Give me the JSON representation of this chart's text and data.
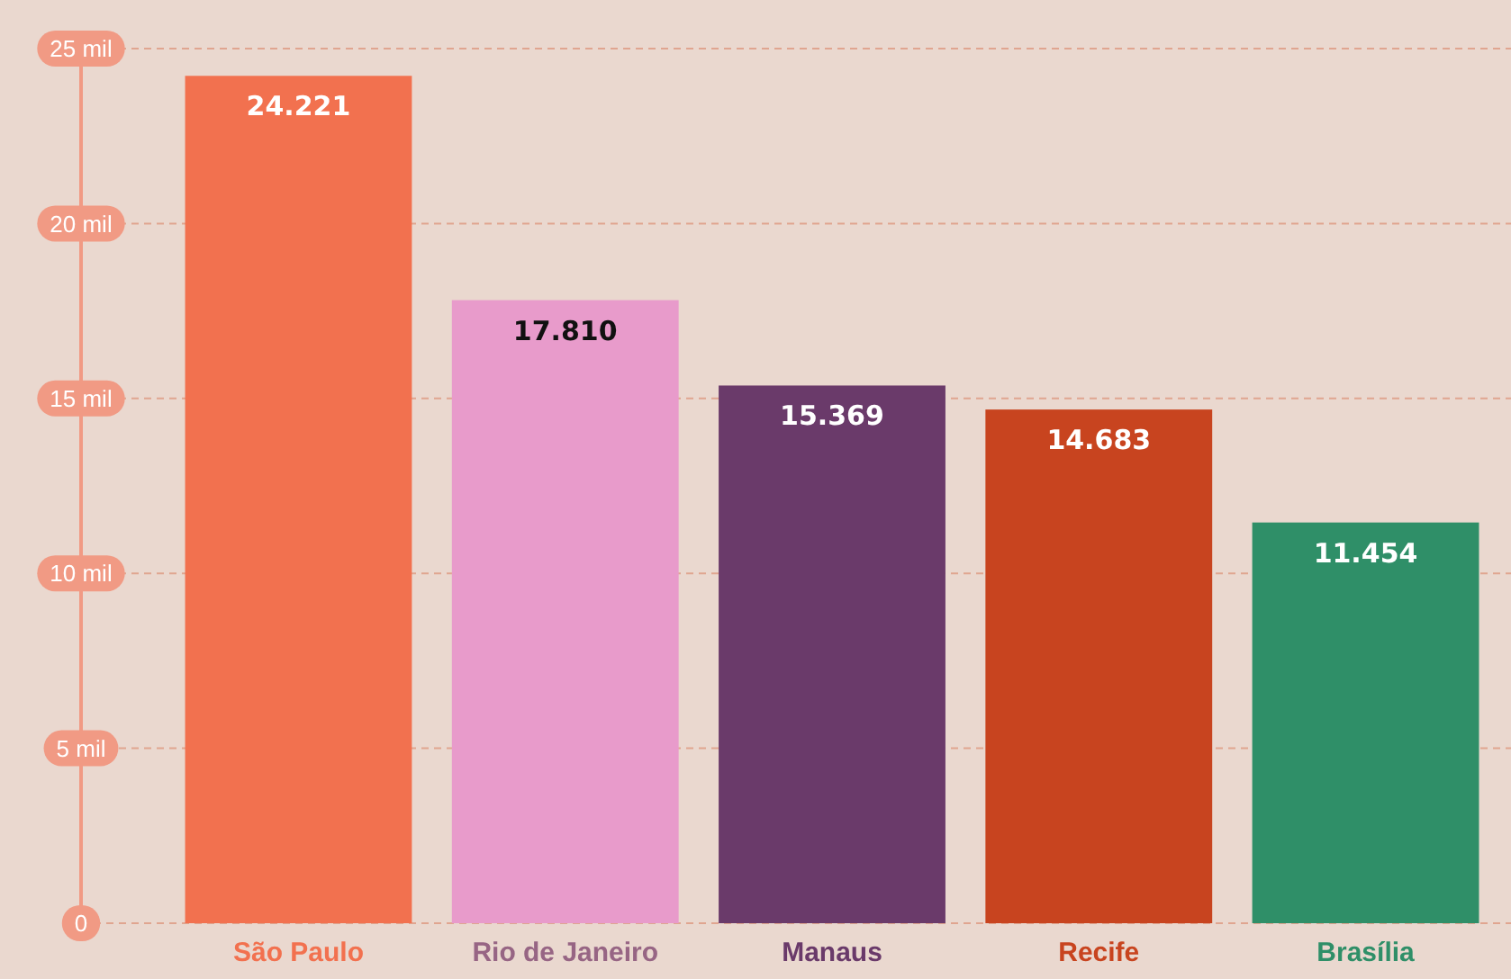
{
  "chart_data": {
    "type": "bar",
    "categories": [
      "São Paulo",
      "Rio de Janeiro",
      "Manaus",
      "Recife",
      "Brasília"
    ],
    "values": [
      24.221,
      17.81,
      15.369,
      14.683,
      11.454
    ],
    "colors": [
      "#f2714f",
      "#e89bcb",
      "#6a3a6a",
      "#c8441f",
      "#2f8f68"
    ],
    "value_labels": [
      "24.221",
      "17.810",
      "15.369",
      "14.683",
      "11.454"
    ],
    "ylim": [
      0,
      25
    ],
    "yticks": [
      0,
      {
        "value": 5,
        "label": "5 mil"
      },
      {
        "value": 10,
        "label": "10 mil"
      },
      {
        "value": 15,
        "label": "15 mil"
      },
      {
        "value": 20,
        "label": "20 mil"
      },
      {
        "value": 25,
        "label": "25 mil"
      }
    ],
    "grid": "y"
  }
}
